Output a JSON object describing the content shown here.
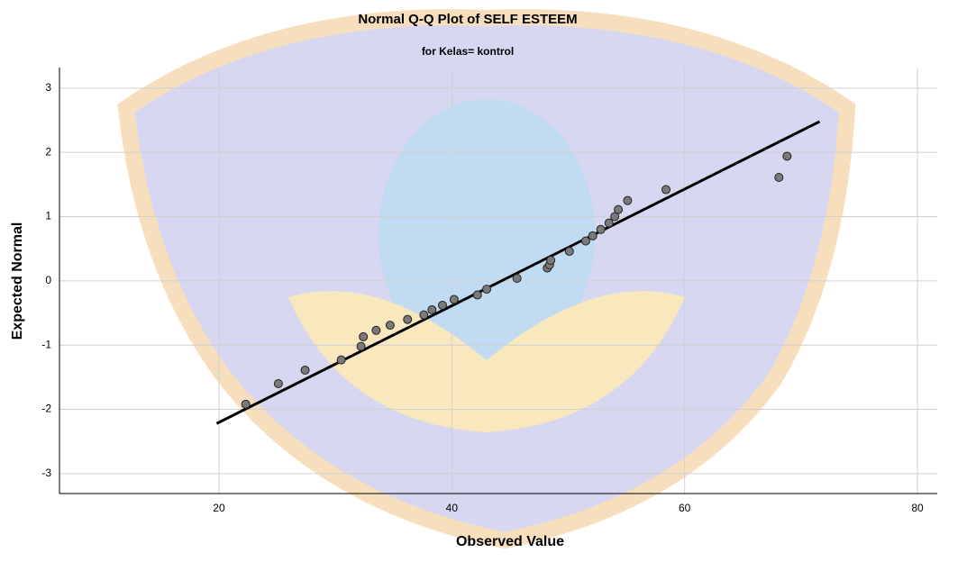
{
  "chart_data": {
    "type": "scatter",
    "title": "Normal Q-Q Plot of SELF ESTEEM",
    "subtitle": "for Kelas= kontrol",
    "x_label": "Observed Value",
    "y_label": "Expected Normal",
    "x": [
      22.3,
      25.1,
      27.4,
      30.5,
      32.2,
      32.4,
      33.5,
      34.7,
      36.2,
      37.6,
      38.3,
      39.2,
      40.2,
      42.2,
      43.0,
      45.6,
      48.2,
      48.4,
      48.5,
      50.1,
      51.5,
      52.1,
      52.8,
      53.5,
      54.0,
      54.3,
      55.1,
      58.4,
      68.1,
      68.8
    ],
    "values": [
      -1.92,
      -1.6,
      -1.39,
      -1.23,
      -1.02,
      -0.87,
      -0.77,
      -0.69,
      -0.6,
      -0.53,
      -0.45,
      -0.38,
      -0.29,
      -0.22,
      -0.13,
      0.04,
      0.2,
      0.25,
      0.32,
      0.46,
      0.62,
      0.7,
      0.8,
      0.9,
      1.0,
      1.11,
      1.25,
      1.42,
      1.61,
      1.94
    ],
    "color": "#7a7a7a",
    "reference_line": {
      "x": [
        19.8,
        71.6
      ],
      "values": [
        -2.22,
        2.48
      ],
      "color": "#000000"
    },
    "xlim": [
      6.3,
      81.7
    ],
    "ylim": [
      -3.31,
      3.32
    ],
    "xticks": [
      20,
      40,
      60,
      80
    ],
    "yticks": [
      -3,
      -2,
      -1,
      0,
      1,
      2,
      3
    ],
    "grid": true
  }
}
